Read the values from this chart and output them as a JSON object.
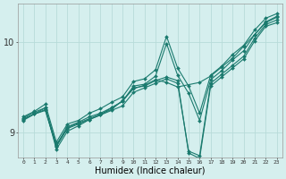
{
  "xlabel": "Humidex (Indice chaleur)",
  "background_color": "#d5efee",
  "grid_color": "#b8dbd9",
  "line_color": "#1a7a6e",
  "xlim": [
    -0.5,
    23.5
  ],
  "ylim": [
    8.72,
    10.42
  ],
  "yticks": [
    9,
    10
  ],
  "xticks": [
    0,
    1,
    2,
    3,
    4,
    5,
    6,
    7,
    8,
    9,
    10,
    11,
    12,
    13,
    14,
    15,
    16,
    17,
    18,
    19,
    20,
    21,
    22,
    23
  ],
  "series": [
    {
      "x": [
        0,
        1,
        2,
        3,
        4,
        5,
        6,
        7,
        8,
        9,
        10,
        11,
        12,
        13,
        14,
        15,
        16,
        17,
        18,
        19,
        20,
        21,
        22,
        23
      ],
      "y": [
        9.14,
        9.2,
        9.24,
        8.84,
        9.04,
        9.09,
        9.14,
        9.19,
        9.24,
        9.29,
        9.44,
        9.49,
        9.54,
        9.59,
        9.54,
        8.79,
        8.74,
        9.54,
        9.64,
        9.74,
        9.84,
        10.04,
        10.19,
        10.24
      ]
    },
    {
      "x": [
        0,
        1,
        2,
        3,
        4,
        5,
        6,
        7,
        8,
        9,
        10,
        11,
        12,
        13,
        14,
        15,
        16,
        17,
        18,
        19,
        20,
        21,
        22,
        23
      ],
      "y": [
        9.16,
        9.22,
        9.27,
        8.86,
        9.06,
        9.11,
        9.17,
        9.21,
        9.27,
        9.34,
        9.51,
        9.53,
        9.62,
        9.98,
        9.63,
        9.43,
        9.13,
        9.58,
        9.68,
        9.8,
        9.9,
        10.08,
        10.21,
        10.27
      ]
    },
    {
      "x": [
        0,
        1,
        2,
        3,
        4,
        5,
        6,
        7,
        8,
        9,
        10,
        11,
        12,
        13,
        14,
        15,
        16,
        17,
        18,
        19,
        20,
        21,
        22,
        23
      ],
      "y": [
        9.17,
        9.23,
        9.31,
        8.89,
        9.09,
        9.13,
        9.21,
        9.26,
        9.33,
        9.39,
        9.56,
        9.59,
        9.69,
        10.06,
        9.71,
        9.51,
        9.21,
        9.63,
        9.73,
        9.86,
        9.96,
        10.13,
        10.26,
        10.31
      ]
    },
    {
      "x": [
        0,
        2,
        3,
        4,
        5,
        6,
        7,
        8,
        9,
        10,
        11,
        12,
        13,
        14,
        15,
        16,
        17,
        18,
        19,
        20,
        21,
        22,
        23
      ],
      "y": [
        9.13,
        9.27,
        8.81,
        9.01,
        9.07,
        9.14,
        9.19,
        9.27,
        9.34,
        9.49,
        9.51,
        9.57,
        9.61,
        9.57,
        8.77,
        8.71,
        9.51,
        9.61,
        9.71,
        9.81,
        10.01,
        10.17,
        10.21
      ]
    },
    {
      "x": [
        0,
        1,
        2,
        3,
        4,
        5,
        6,
        7,
        8,
        9,
        10,
        11,
        12,
        13,
        14,
        16,
        17,
        18,
        19,
        20,
        21,
        22,
        23
      ],
      "y": [
        9.15,
        9.2,
        9.25,
        8.85,
        9.05,
        9.1,
        9.15,
        9.2,
        9.25,
        9.35,
        9.48,
        9.52,
        9.58,
        9.55,
        9.5,
        9.55,
        9.62,
        9.72,
        9.82,
        9.95,
        10.08,
        10.22,
        10.28
      ]
    }
  ]
}
